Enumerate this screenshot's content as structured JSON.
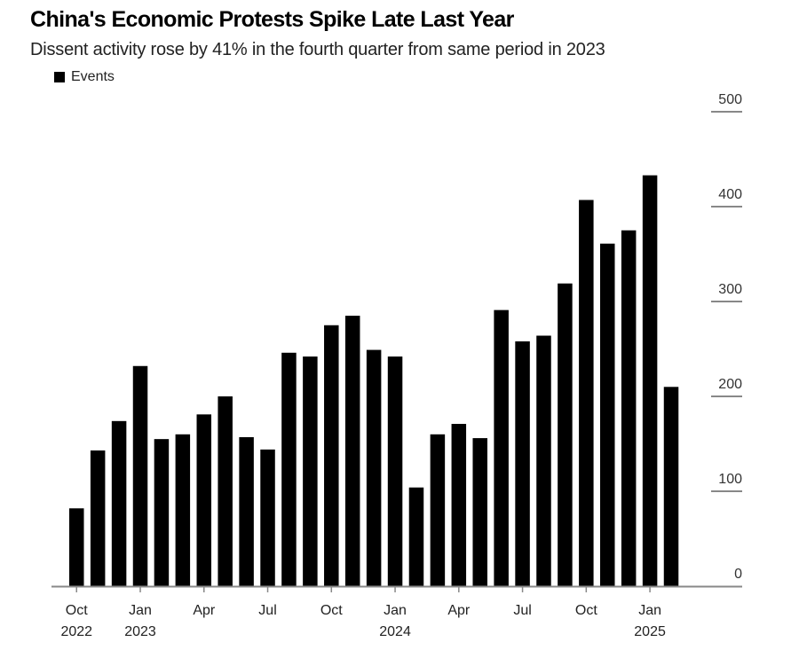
{
  "chart_data": {
    "type": "bar",
    "title": "China's Economic Protests Spike Late Last Year",
    "subtitle": "Dissent activity rose by 41% in the fourth quarter from same period in 2023",
    "legend": [
      {
        "name": "Events",
        "color": "#000000"
      }
    ],
    "legend_position": "top-left",
    "xlabel": "",
    "ylabel": "",
    "ylim": [
      0,
      500
    ],
    "y_axis_side": "right",
    "yticks": [
      0,
      100,
      200,
      300,
      400,
      500
    ],
    "grid": false,
    "categories": [
      "Oct 2022",
      "Nov 2022",
      "Dec 2022",
      "Jan 2023",
      "Feb 2023",
      "Mar 2023",
      "Apr 2023",
      "May 2023",
      "Jun 2023",
      "Jul 2023",
      "Aug 2023",
      "Sep 2023",
      "Oct 2023",
      "Nov 2023",
      "Dec 2023",
      "Jan 2024",
      "Feb 2024",
      "Mar 2024",
      "Apr 2024",
      "May 2024",
      "Jun 2024",
      "Jul 2024",
      "Aug 2024",
      "Sep 2024",
      "Oct 2024",
      "Nov 2024",
      "Dec 2024",
      "Jan 2025",
      "Feb 2025"
    ],
    "x_tick_labels": [
      {
        "index": 0,
        "line1": "Oct",
        "line2": "2022"
      },
      {
        "index": 3,
        "line1": "Jan",
        "line2": "2023"
      },
      {
        "index": 6,
        "line1": "Apr",
        "line2": ""
      },
      {
        "index": 9,
        "line1": "Jul",
        "line2": ""
      },
      {
        "index": 12,
        "line1": "Oct",
        "line2": ""
      },
      {
        "index": 15,
        "line1": "Jan",
        "line2": "2024"
      },
      {
        "index": 18,
        "line1": "Apr",
        "line2": ""
      },
      {
        "index": 21,
        "line1": "Jul",
        "line2": ""
      },
      {
        "index": 24,
        "line1": "Oct",
        "line2": ""
      },
      {
        "index": 27,
        "line1": "Jan",
        "line2": "2025"
      }
    ],
    "series": [
      {
        "name": "Events",
        "color": "#000000",
        "values": [
          82,
          143,
          174,
          232,
          155,
          160,
          181,
          200,
          157,
          144,
          246,
          242,
          275,
          285,
          249,
          242,
          104,
          160,
          171,
          156,
          291,
          258,
          264,
          319,
          407,
          361,
          375,
          433,
          210
        ]
      }
    ]
  }
}
